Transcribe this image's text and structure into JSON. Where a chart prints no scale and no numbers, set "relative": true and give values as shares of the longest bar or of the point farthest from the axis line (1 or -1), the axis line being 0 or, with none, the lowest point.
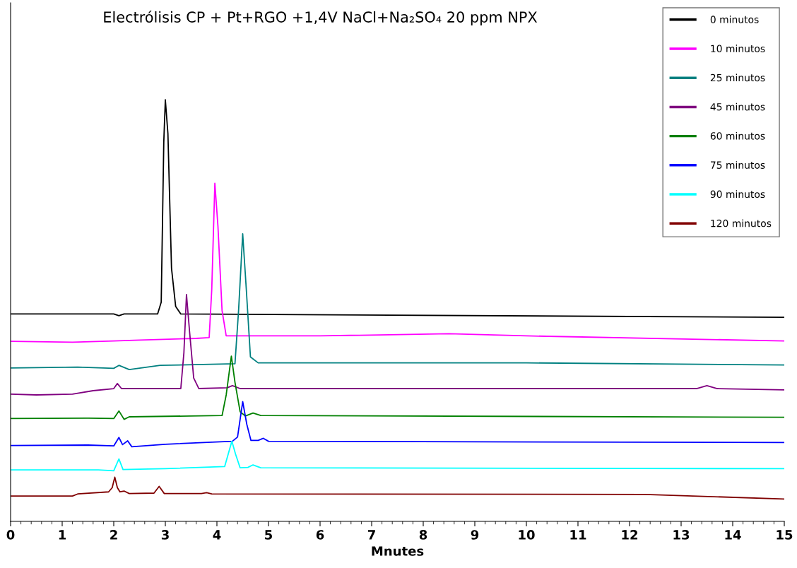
{
  "chart_data": {
    "type": "line",
    "relative": true,
    "title": "Electrólisis CP + Pt+RGO +1,4V NaCl+Na₂SO₄ 20 ppm NPX",
    "xlabel": "Mnutes",
    "xlim": [
      0,
      15
    ],
    "xticks": [
      0,
      1,
      2,
      3,
      4,
      5,
      6,
      7,
      8,
      9,
      10,
      11,
      12,
      13,
      14,
      15
    ],
    "grid": false,
    "legend": "top right",
    "marker": "none",
    "line_style": "solid",
    "series": [
      {
        "name": "0 minutos",
        "color": "#000000",
        "x": [
          0,
          2.0,
          2.1,
          2.2,
          2.85,
          2.92,
          2.97,
          3.0,
          3.05,
          3.12,
          3.2,
          3.3,
          15
        ],
        "values": [
          0.492,
          0.492,
          0.488,
          0.492,
          0.492,
          0.52,
          0.9,
          1.0,
          0.92,
          0.6,
          0.51,
          0.492,
          0.484
        ]
      },
      {
        "name": "10 minutos",
        "color": "#ff00ff",
        "x": [
          0,
          1.2,
          2.0,
          2.5,
          3.6,
          3.85,
          3.9,
          3.96,
          4.02,
          4.1,
          4.18,
          6,
          8.5,
          10,
          15
        ],
        "values": [
          0.427,
          0.425,
          0.428,
          0.43,
          0.434,
          0.436,
          0.55,
          0.802,
          0.7,
          0.5,
          0.44,
          0.44,
          0.445,
          0.44,
          0.428
        ]
      },
      {
        "name": "25 minutos",
        "color": "#008080",
        "x": [
          0,
          1.3,
          2.0,
          2.1,
          2.3,
          2.9,
          4.35,
          4.42,
          4.5,
          4.57,
          4.65,
          4.8,
          10,
          15
        ],
        "values": [
          0.364,
          0.366,
          0.363,
          0.37,
          0.36,
          0.37,
          0.374,
          0.5,
          0.682,
          0.55,
          0.39,
          0.376,
          0.376,
          0.371
        ]
      },
      {
        "name": "45 minutos",
        "color": "#800080",
        "x": [
          0,
          0.5,
          1.2,
          1.6,
          2.0,
          2.07,
          2.15,
          3.3,
          3.36,
          3.41,
          3.47,
          3.55,
          3.65,
          4.2,
          4.3,
          4.45,
          13.3,
          13.5,
          13.7,
          15
        ],
        "values": [
          0.302,
          0.3,
          0.302,
          0.31,
          0.315,
          0.327,
          0.315,
          0.315,
          0.4,
          0.538,
          0.45,
          0.34,
          0.315,
          0.317,
          0.322,
          0.315,
          0.315,
          0.322,
          0.315,
          0.312
        ]
      },
      {
        "name": "60 minutos",
        "color": "#008000",
        "x": [
          0,
          1.5,
          2.0,
          2.1,
          2.2,
          2.3,
          4.1,
          4.18,
          4.28,
          4.35,
          4.45,
          4.55,
          4.7,
          4.85,
          15
        ],
        "values": [
          0.244,
          0.245,
          0.244,
          0.262,
          0.242,
          0.248,
          0.251,
          0.3,
          0.392,
          0.33,
          0.26,
          0.25,
          0.257,
          0.251,
          0.247
        ]
      },
      {
        "name": "75 minutos",
        "color": "#0000ff",
        "x": [
          0,
          1.5,
          2.0,
          2.1,
          2.17,
          2.27,
          2.35,
          3,
          4.3,
          4.4,
          4.5,
          4.58,
          4.66,
          4.8,
          4.9,
          5.0,
          15
        ],
        "values": [
          0.18,
          0.181,
          0.179,
          0.199,
          0.182,
          0.191,
          0.177,
          0.183,
          0.19,
          0.2,
          0.284,
          0.23,
          0.192,
          0.192,
          0.197,
          0.19,
          0.187
        ]
      },
      {
        "name": "90 minutos",
        "color": "#00ffff",
        "x": [
          0,
          1.7,
          2.0,
          2.1,
          2.18,
          3,
          4.15,
          4.22,
          4.29,
          4.36,
          4.45,
          4.6,
          4.7,
          4.85,
          15
        ],
        "values": [
          0.122,
          0.122,
          0.12,
          0.148,
          0.123,
          0.125,
          0.13,
          0.16,
          0.19,
          0.16,
          0.127,
          0.128,
          0.134,
          0.127,
          0.125
        ]
      },
      {
        "name": "120 minutos",
        "color": "#800000",
        "x": [
          0,
          1.2,
          1.3,
          1.9,
          1.97,
          2.02,
          2.07,
          2.12,
          2.2,
          2.3,
          2.78,
          2.88,
          2.98,
          3.7,
          3.8,
          3.9,
          12.3,
          15
        ],
        "values": [
          0.06,
          0.06,
          0.065,
          0.07,
          0.08,
          0.105,
          0.08,
          0.07,
          0.072,
          0.066,
          0.067,
          0.083,
          0.066,
          0.066,
          0.068,
          0.065,
          0.064,
          0.053
        ]
      }
    ]
  }
}
